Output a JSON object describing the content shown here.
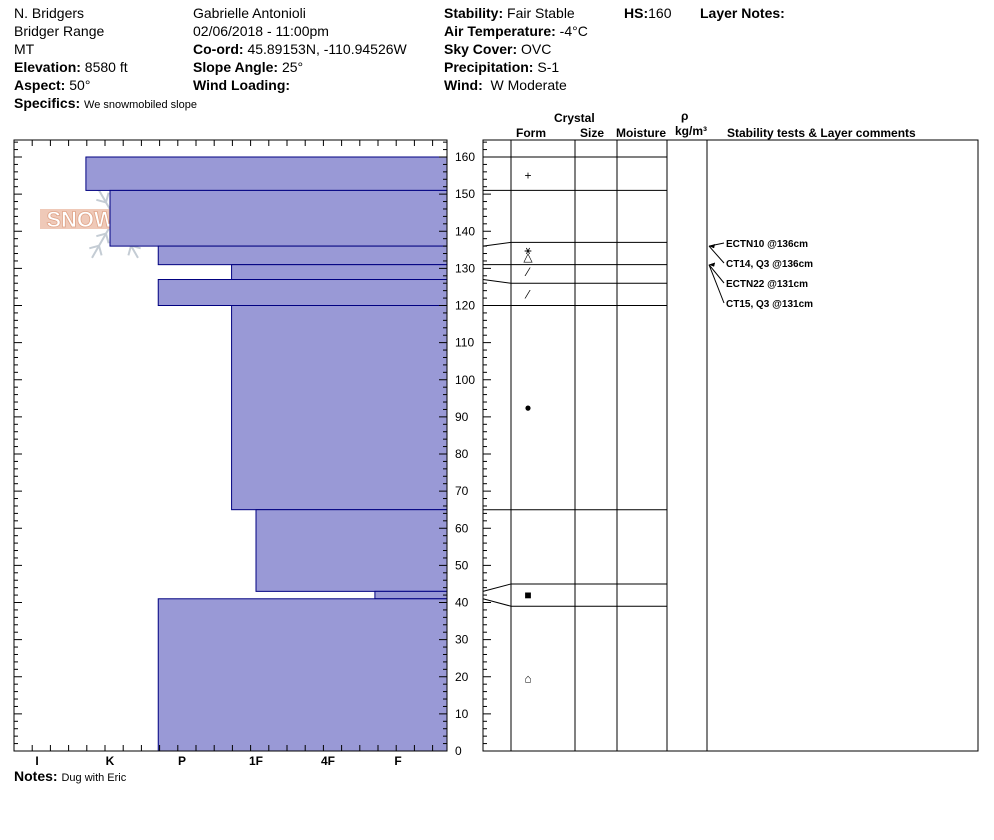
{
  "header": {
    "location": "N. Bridgers",
    "range": "Bridger Range",
    "state": "MT",
    "elevation_label": "Elevation:",
    "elevation": "8580 ft",
    "aspect_label": "Aspect:",
    "aspect": "50°",
    "specifics_label": "Specifics:",
    "specifics": "We snowmobiled slope",
    "observer": "Gabrielle Antonioli",
    "datetime": "02/06/2018 - 11:00pm",
    "coord_label": "Co-ord:",
    "coord": "45.89153N, -110.94526W",
    "slope_label": "Slope Angle:",
    "slope": "25°",
    "wind_loading_label": "Wind Loading:",
    "wind_loading": "",
    "stability_label": "Stability:",
    "stability": "Fair Stable",
    "air_temp_label": "Air Temperature:",
    "air_temp": "-4°C",
    "sky_label": "Sky Cover:",
    "sky": "OVC",
    "precip_label": "Precipitation:",
    "precip": "S-1",
    "wind_label": "Wind:",
    "wind": "W Moderate",
    "hs_label": "HS:",
    "hs": "160",
    "layer_notes_label": "Layer Notes:"
  },
  "notes": {
    "label": "Notes:",
    "text": "Dug with Eric"
  },
  "logo": {
    "text": "SNOW PILOT"
  },
  "columns": {
    "form": "Form",
    "crystal": "Crystal",
    "size": "Size",
    "moisture": "Moisture",
    "rho": "ρ",
    "density_unit": "kg/m³",
    "comments": "Stability tests & Layer comments"
  },
  "colors": {
    "hardness_fill": "#9999d6",
    "hardness_edge": "#000080"
  },
  "chart_data": {
    "type": "bar",
    "orientation": "horizontal",
    "ylim": [
      0,
      165
    ],
    "yticks": [
      0,
      10,
      20,
      30,
      40,
      50,
      60,
      70,
      80,
      90,
      100,
      110,
      120,
      130,
      140,
      150,
      160
    ],
    "hardness_scale": [
      "I",
      "K",
      "P",
      "1F",
      "4F",
      "F"
    ],
    "hardness_layers": [
      {
        "bottom": 151,
        "top": 160,
        "hardness": 0.67
      },
      {
        "bottom": 136,
        "top": 151,
        "hardness": 1.0
      },
      {
        "bottom": 131,
        "top": 136,
        "hardness": 1.67
      },
      {
        "bottom": 127,
        "top": 131,
        "hardness": 2.67
      },
      {
        "bottom": 120,
        "top": 127,
        "hardness": 1.67
      },
      {
        "bottom": 65,
        "top": 120,
        "hardness": 2.67
      },
      {
        "bottom": 43,
        "top": 65,
        "hardness": 3.0
      },
      {
        "bottom": 41,
        "top": 43,
        "hardness": 4.67
      },
      {
        "bottom": 0,
        "top": 41,
        "hardness": 1.67
      }
    ],
    "profile_boundaries": [
      {
        "left": 160,
        "right": 160
      },
      {
        "left": 151,
        "right": 151
      },
      {
        "left": 136,
        "right": 137
      },
      {
        "left": 131,
        "right": 131
      },
      {
        "left": 127,
        "right": 126
      },
      {
        "left": 120,
        "right": 120
      },
      {
        "left": 65,
        "right": 65
      },
      {
        "left": 43,
        "right": 45
      },
      {
        "left": 41,
        "right": 39
      }
    ],
    "grain_forms": [
      {
        "height": 155,
        "symbol": "+"
      },
      {
        "height": 135,
        "symbol": "⚹"
      },
      {
        "height": 133,
        "symbol": "△"
      },
      {
        "height": 129,
        "symbol": "⁄"
      },
      {
        "height": 123,
        "symbol": "⁄"
      },
      {
        "height": 92.5,
        "symbol": "●"
      },
      {
        "height": 42,
        "symbol": "■"
      },
      {
        "height": 19.5,
        "symbol": "⌂"
      }
    ],
    "stability_tests": [
      {
        "label": "ECTN10 @136cm",
        "height": 136
      },
      {
        "label": "CT14, Q3 @136cm",
        "height": 136
      },
      {
        "label": "ECTN22 @131cm",
        "height": 131
      },
      {
        "label": "CT15, Q3 @131cm",
        "height": 131
      }
    ]
  }
}
